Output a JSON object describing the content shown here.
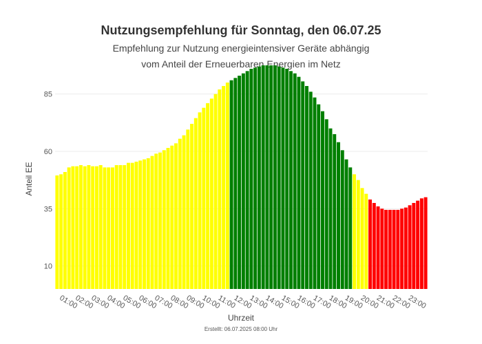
{
  "chart_data": {
    "type": "bar",
    "title": "Nutzungsempfehlung für Sonntag, den 06.07.25",
    "subtitle_lines": [
      "Empfehlung zur Nutzung energieintensiver Geräte abhängig",
      "vom Anteil der Erneuerbaren Energien im Netz"
    ],
    "xlabel": "Uhrzeit",
    "ylabel": "Anteil EE",
    "ylim": [
      0,
      96
    ],
    "yticks": [
      10,
      35,
      60,
      85
    ],
    "grid": true,
    "footnote": "Erstellt: 06.07.2025 08:00 Uhr",
    "x_tick_labels": [
      "01:00",
      "02:00",
      "03:00",
      "04:00",
      "05:00",
      "06:00",
      "07:00",
      "08:00",
      "09:00",
      "10:00",
      "11:00",
      "12:00",
      "13:00",
      "14:00",
      "15:00",
      "16:00",
      "17:00",
      "18:00",
      "19:00",
      "20:00",
      "21:00",
      "22:00",
      "23:00"
    ],
    "x_tick_first_bar": 4,
    "bars_per_hour": 4,
    "bar_color_keys": [
      "yellow",
      "green",
      "red"
    ],
    "colors": {
      "yellow": "#ffff00",
      "green": "#007f00",
      "red": "#ff0000"
    },
    "color_segments": [
      {
        "color": "yellow",
        "count": 50
      },
      {
        "color": "green",
        "count": 13
      },
      {
        "color": "green",
        "count": 0
      },
      {
        "color": "green",
        "count": 0
      },
      {
        "color": "green",
        "count": 0
      },
      {
        "color": "green",
        "count": 0
      },
      {
        "color": "green",
        "count": 0
      },
      {
        "color": "green",
        "count": 0
      },
      {
        "color": "green",
        "count": 0
      },
      {
        "color": "green",
        "count": 0
      },
      {
        "color": "green",
        "count": 0
      },
      {
        "color": "green",
        "count": 0
      },
      {
        "color": "green",
        "count": 0
      },
      {
        "color": "green",
        "count": 0
      },
      {
        "color": "green",
        "count": 0
      },
      {
        "color": "green",
        "count": 0
      },
      {
        "color": "green",
        "count": 0
      },
      {
        "color": "green",
        "count": 0
      },
      {
        "color": "green",
        "count": 0
      },
      {
        "color": "green",
        "count": 0
      },
      {
        "color": "green",
        "count": 0
      },
      {
        "color": "green",
        "count": 0
      },
      {
        "color": "green",
        "count": 0
      },
      {
        "color": "green",
        "count": 0
      },
      {
        "color": "green",
        "count": 0
      },
      {
        "color": "green",
        "count": 0
      },
      {
        "color": "green",
        "count": 0
      },
      {
        "color": "green",
        "count": 0
      },
      {
        "color": "green",
        "count": 0
      },
      {
        "color": "green",
        "count": 0
      },
      {
        "color": "green",
        "count": 0
      },
      {
        "color": "green",
        "count": 0
      },
      {
        "color": "green",
        "count": 0
      },
      {
        "color": "green",
        "count": 0
      },
      {
        "color": "green",
        "count": 0
      },
      {
        "color": "green",
        "count": 0
      },
      {
        "color": "green",
        "count": 0
      },
      {
        "color": "green",
        "count": 0
      },
      {
        "color": "green",
        "count": 0
      },
      {
        "color": "green",
        "count": 0
      },
      {
        "color": "green",
        "count": 0
      },
      {
        "color": "green",
        "count": 0
      },
      {
        "color": "green",
        "count": 0
      },
      {
        "color": "green",
        "count": 0
      },
      {
        "color": "green",
        "count": 0
      },
      {
        "color": "green",
        "count": 0
      },
      {
        "color": "green",
        "count": 0
      },
      {
        "color": "green",
        "count": 0
      },
      {
        "color": "green",
        "count": 0
      },
      {
        "color": "green",
        "count": 0
      }
    ],
    "series": [
      {
        "values": [
          49.5,
          50,
          51,
          53,
          53.5,
          53.5,
          54,
          53.5,
          54,
          53.5,
          53.5,
          54,
          53,
          53,
          53,
          54,
          54,
          54,
          55,
          55,
          55.5,
          56,
          56.5,
          57,
          58,
          59,
          59.5,
          60.5,
          61.5,
          62.5,
          63.5,
          65.5,
          67,
          69.5,
          72,
          74.5,
          77,
          79,
          81,
          83,
          85,
          87,
          88.5,
          90,
          91,
          92,
          93,
          94,
          95,
          96,
          96.5,
          97,
          97.5,
          97.5,
          97.5,
          97.5,
          97,
          96.5,
          96,
          95,
          94,
          92.5,
          90.5,
          88.5,
          86,
          83.5,
          80.5,
          77.5,
          74,
          70,
          67.5,
          64,
          60.5,
          56.5,
          53,
          50,
          47.5,
          44,
          41.5,
          39,
          37.5,
          36,
          35,
          34.5,
          34.5,
          34.5,
          34.5,
          35,
          35.5,
          36.5,
          37.5,
          38.5,
          39.5,
          40
        ]
      }
    ]
  }
}
